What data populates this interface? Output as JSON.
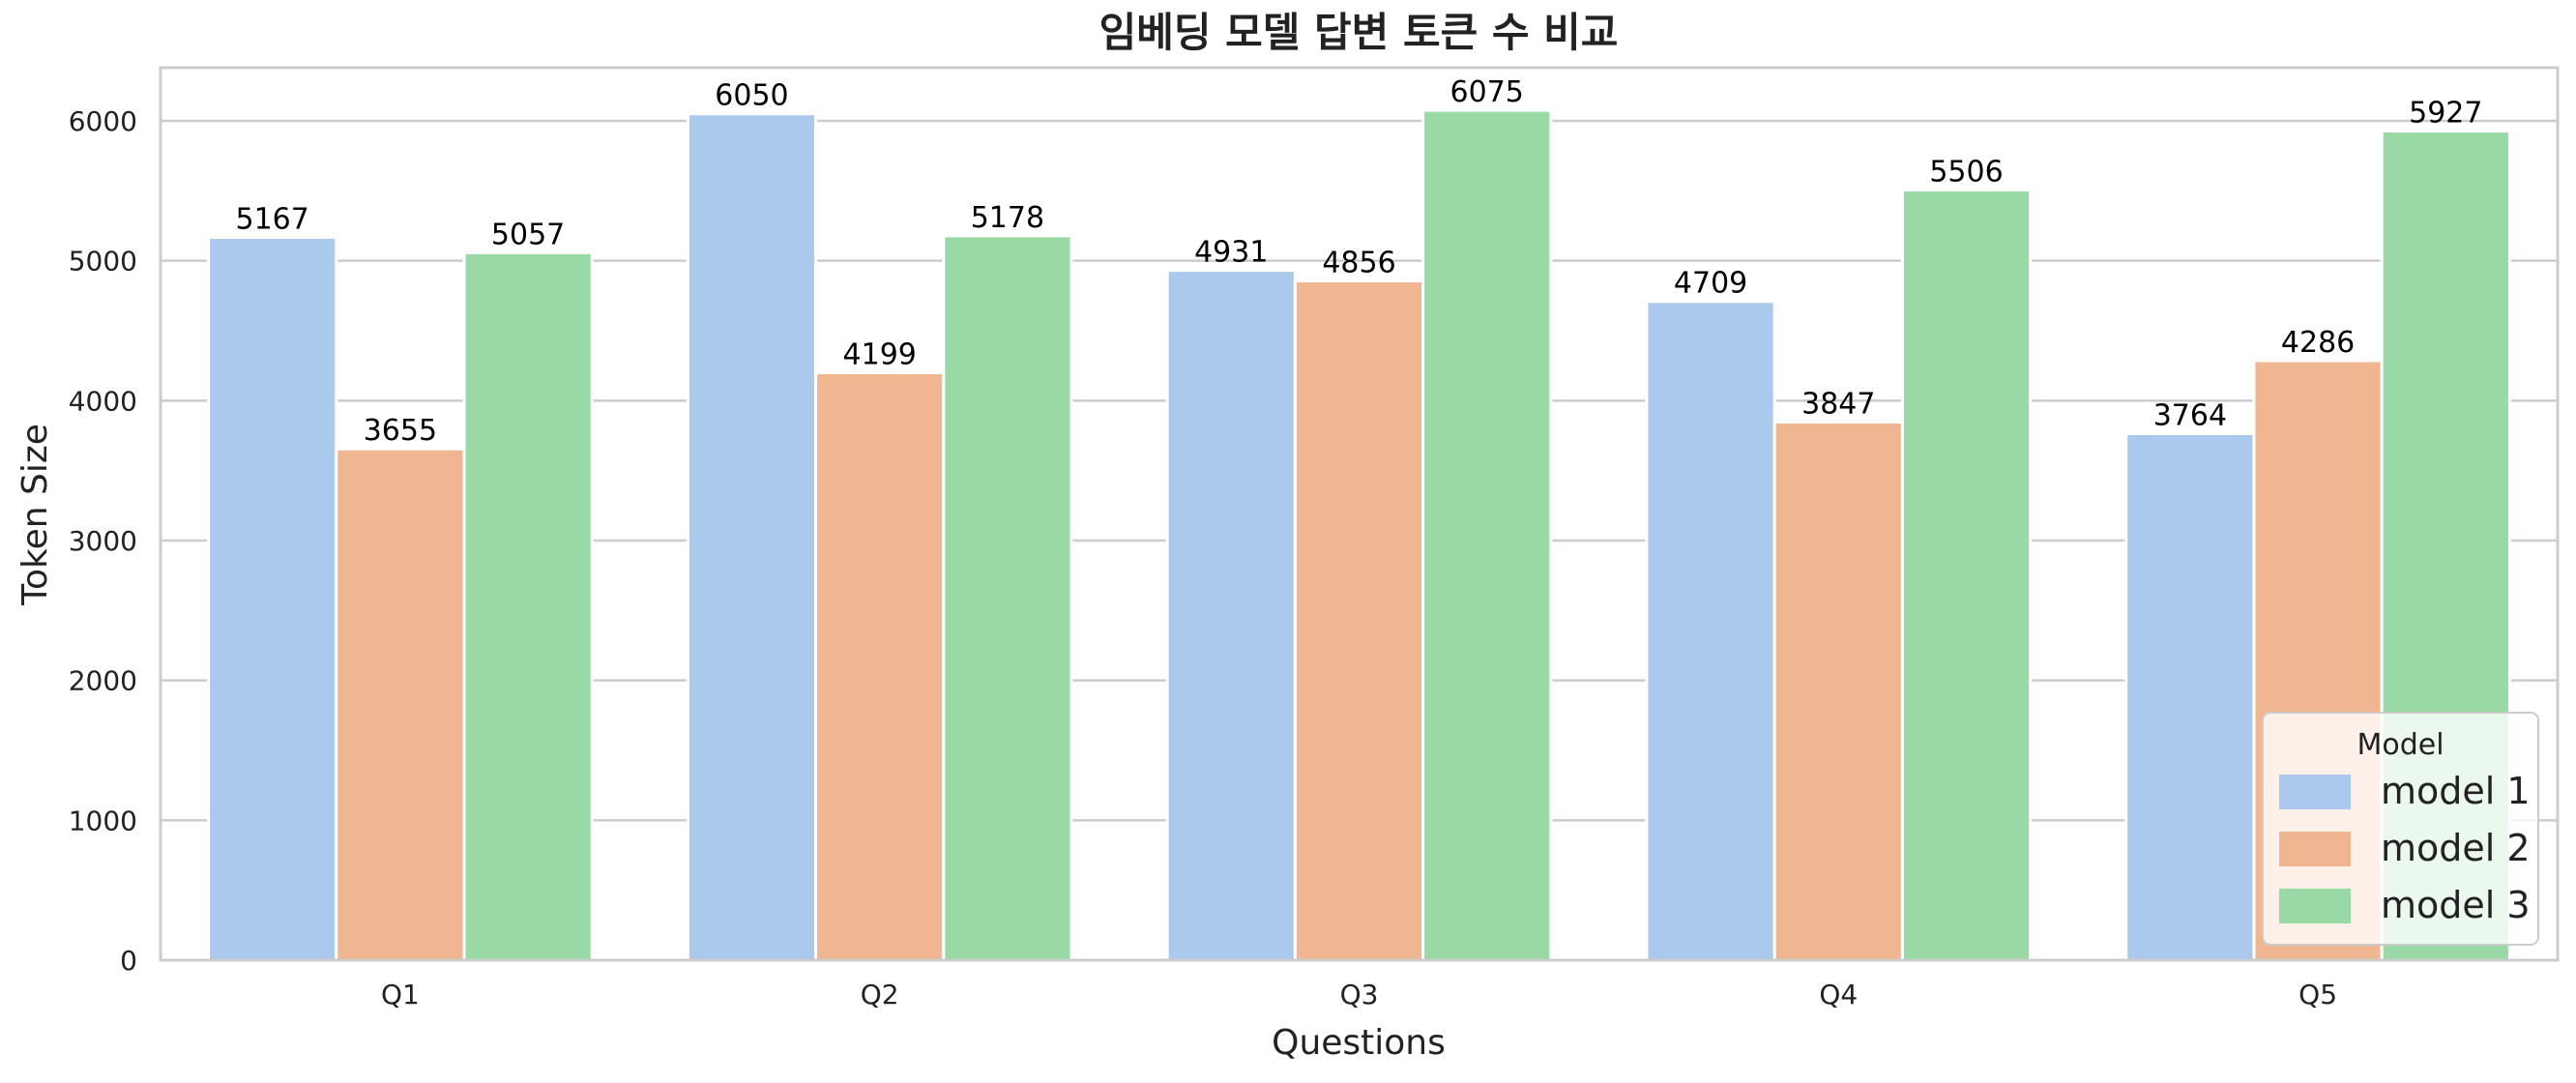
{
  "chart_data": {
    "type": "bar",
    "title": "임베딩 모델 답변 토큰 수 비교",
    "xlabel": "Questions",
    "ylabel": "Token Size",
    "categories": [
      "Q1",
      "Q2",
      "Q3",
      "Q4",
      "Q5"
    ],
    "series": [
      {
        "name": "model 1",
        "color": "#abc9ed",
        "values": [
          5167,
          6050,
          4931,
          4709,
          3764
        ]
      },
      {
        "name": "model 2",
        "color": "#f0b692",
        "values": [
          3655,
          4199,
          4856,
          3847,
          4286
        ]
      },
      {
        "name": "model 3",
        "color": "#99d9a6",
        "values": [
          5057,
          5178,
          6075,
          5506,
          5927
        ]
      }
    ],
    "ylim": [
      0,
      6380
    ],
    "yticks": [
      0,
      1000,
      2000,
      3000,
      4000,
      5000,
      6000
    ],
    "grid": true,
    "legend": {
      "title": "Model",
      "placement": "lower-right"
    }
  }
}
